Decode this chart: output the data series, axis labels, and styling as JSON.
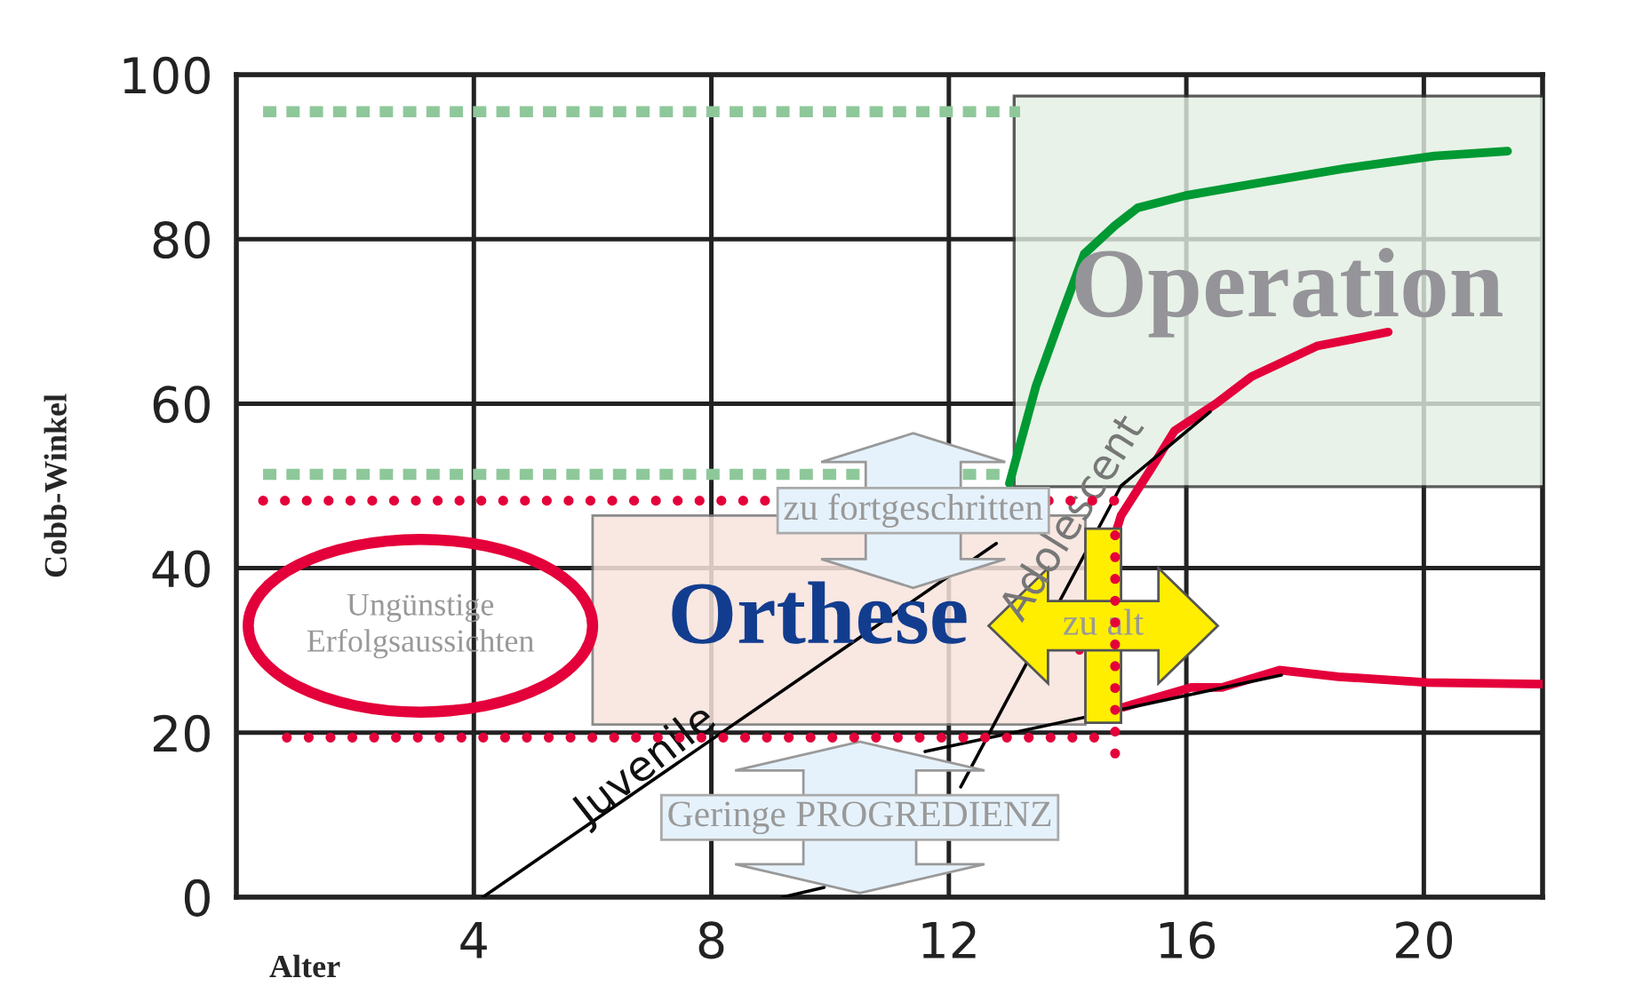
{
  "chart_data": {
    "type": "line",
    "xlabel": "Alter",
    "ylabel": "Cobb-Winkel",
    "xlim": [
      0,
      22
    ],
    "xticks": [
      4,
      8,
      12,
      16,
      20
    ],
    "ylim": [
      0,
      100
    ],
    "yticks": [
      0,
      20,
      40,
      60,
      80,
      100
    ],
    "grid": true,
    "legend": false,
    "series": [
      {
        "color": "#009933",
        "x": [
          13.02,
          13.47,
          13.9,
          14.28,
          14.79,
          15.18,
          15.99,
          17.19,
          18.68,
          20.18,
          21.41
        ],
        "values": [
          50.3,
          62.2,
          70.8,
          78.2,
          81.6,
          83.8,
          85.3,
          86.8,
          88.6,
          90.1,
          90.7
        ],
        "line_style": "solid"
      },
      {
        "color": "#e4003a",
        "x": [
          14.2,
          14.9,
          15.4,
          15.8,
          16.5,
          17.1,
          18.2,
          19.4
        ],
        "values": [
          30,
          46.4,
          52,
          56.7,
          60,
          63.3,
          67,
          68.7
        ],
        "line_style": "solid"
      },
      {
        "color": "#e4003a",
        "x": [
          14.94,
          16.08,
          16.6,
          17.57,
          18.56,
          20.06,
          22
        ],
        "values": [
          23.1,
          25.5,
          25.5,
          27.6,
          26.8,
          26.1,
          25.9
        ],
        "line_style": "solid"
      },
      {
        "color": "#000000",
        "x": [
          4.15,
          12.8
        ],
        "values": [
          0,
          43
        ],
        "line_style": "solid"
      },
      {
        "color": "#000000",
        "x": [
          12.2,
          14.9,
          16.4
        ],
        "values": [
          13.4,
          50,
          59
        ],
        "line_style": "solid"
      },
      {
        "color": "#000000",
        "x": [
          9.2,
          9.9
        ],
        "values": [
          0,
          1.2
        ],
        "line_style": "solid"
      },
      {
        "color": "#000000",
        "x": [
          11.6,
          17.6
        ],
        "values": [
          17.7,
          27
        ],
        "line_style": "solid"
      },
      {
        "color": "#8ec89a",
        "x": [
          0.45,
          13.2
        ],
        "values": [
          95.5,
          95.5
        ],
        "line_style": "dashed"
      },
      {
        "color": "#8ec89a",
        "x": [
          0.45,
          13.0
        ],
        "values": [
          51.4,
          51.4
        ],
        "line_style": "dashed"
      },
      {
        "color": "#e4003a",
        "x": [
          0.45,
          14.8
        ],
        "values": [
          48.2,
          48.2
        ],
        "line_style": "dotted"
      },
      {
        "color": "#e4003a",
        "x": [
          0.85,
          14.8
        ],
        "values": [
          19.4,
          19.4
        ],
        "line_style": "dotted"
      },
      {
        "color": "#e4003a",
        "x": [
          14.8,
          14.8
        ],
        "values": [
          44,
          16
        ],
        "line_style": "dotted"
      }
    ],
    "annotations": [
      "Operation",
      "Orthese",
      "Ungünstige\nErfolgsaussichten",
      "zu fortgeschritten",
      "zu alt",
      "Geringe PROGREDIENZ",
      "Juvenile",
      "Adolescent"
    ]
  }
}
